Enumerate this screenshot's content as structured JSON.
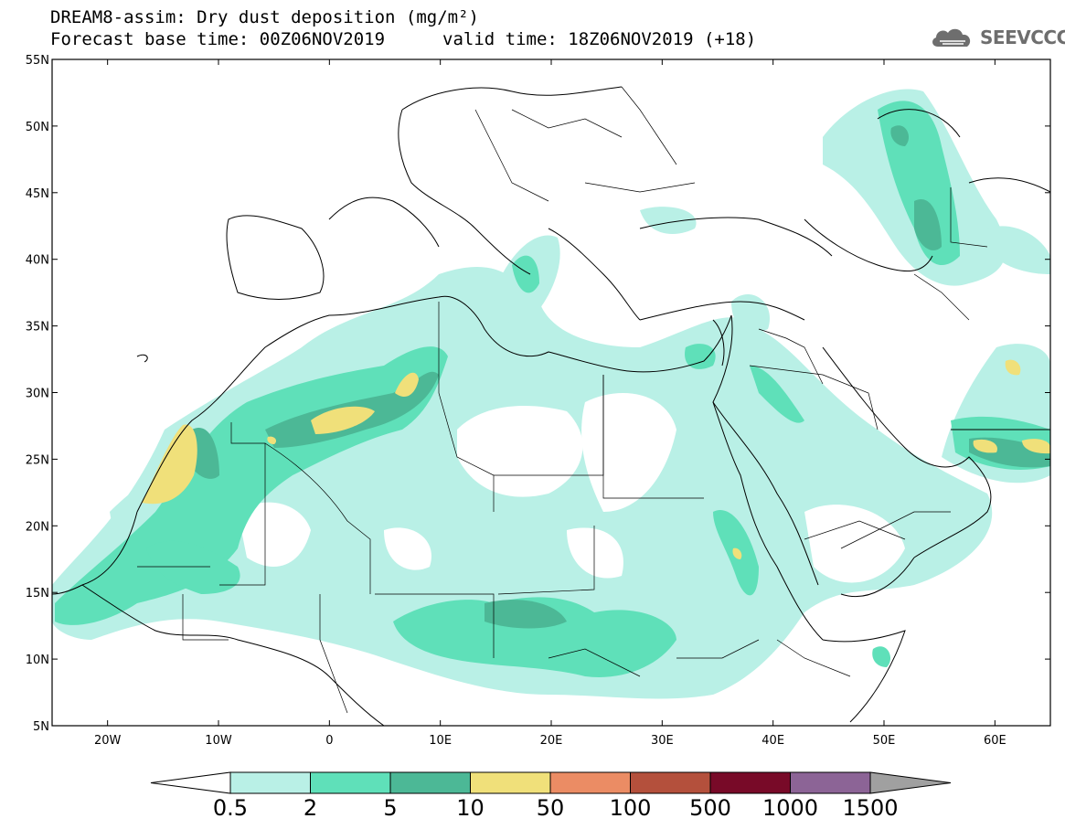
{
  "header": {
    "title": "DREAM8-assim: Dry dust deposition (mg/m²)",
    "base_time": "Forecast base time: 00Z06NOV2019",
    "valid_time": "valid time: 18Z06NOV2019 (+18)"
  },
  "logo": {
    "text": "SEEVCCC",
    "icon": "cloud-logo-icon"
  },
  "map": {
    "lat_labels": [
      "55N",
      "50N",
      "45N",
      "40N",
      "35N",
      "30N",
      "25N",
      "20N",
      "15N",
      "10N",
      "5N"
    ],
    "lon_labels": [
      "20W",
      "10W",
      "0",
      "10E",
      "20E",
      "30E",
      "40E",
      "50E",
      "60E"
    ]
  },
  "colorbar": {
    "colors": [
      "#b9f0e6",
      "#5fe0b9",
      "#4cb896",
      "#f0e07a",
      "#eb8c64",
      "#b4503c",
      "#780a28",
      "#8c6496"
    ],
    "under_color": "#ffffff",
    "over_color": "#a0a0a0",
    "labels": [
      "0.5",
      "2",
      "5",
      "10",
      "50",
      "100",
      "500",
      "1000",
      "1500"
    ]
  },
  "colors": {
    "dust_light": "#b9f0e6",
    "dust_mid": "#5fe0b9",
    "dust_dark": "#4cb896",
    "dust_high": "#f0e07a"
  }
}
